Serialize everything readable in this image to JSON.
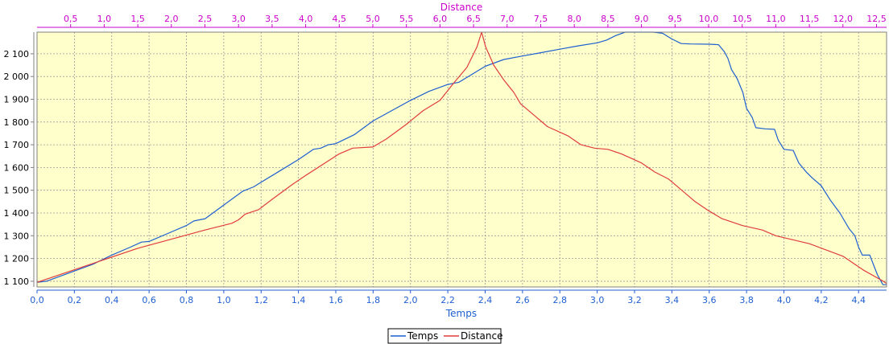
{
  "chart_data": {
    "type": "line",
    "top_axis": {
      "label": "Distance",
      "range": [
        0,
        12.65
      ],
      "ticks": [
        0.5,
        1.0,
        1.5,
        2.0,
        2.5,
        3.0,
        3.5,
        4.0,
        4.5,
        5.0,
        5.5,
        6.0,
        6.5,
        7.0,
        7.5,
        8.0,
        8.5,
        9.0,
        9.5,
        10.0,
        10.5,
        11.0,
        11.5,
        12.0,
        12.5
      ],
      "tick_labels": [
        "0,5",
        "1,0",
        "1,5",
        "2,0",
        "2,5",
        "3,0",
        "3,5",
        "4,0",
        "4,5",
        "5,0",
        "5,5",
        "6,0",
        "6,5",
        "7,0",
        "7,5",
        "8,0",
        "8,5",
        "9,0",
        "9,5",
        "10,0",
        "10,5",
        "11,0",
        "11,5",
        "12,0",
        "12,5"
      ],
      "color": "#cc00cc"
    },
    "bottom_axis": {
      "label": "Temps",
      "range": [
        0,
        4.55
      ],
      "ticks": [
        0.0,
        0.2,
        0.4,
        0.6,
        0.8,
        1.0,
        1.2,
        1.4,
        1.6,
        1.8,
        2.0,
        2.2,
        2.4,
        2.6,
        2.8,
        3.0,
        3.2,
        3.4,
        3.6,
        3.8,
        4.0,
        4.2,
        4.4
      ],
      "tick_labels": [
        "0,0",
        "0,2",
        "0,4",
        "0,6",
        "0,8",
        "1,0",
        "1,2",
        "1,4",
        "1,6",
        "1,8",
        "2,0",
        "2,2",
        "2,4",
        "2,6",
        "2,8",
        "3,0",
        "3,2",
        "3,4",
        "3,6",
        "3,8",
        "4,0",
        "4,2",
        "4,4"
      ],
      "color": "#1f5fd0"
    },
    "y_axis": {
      "label": "",
      "range": [
        1075,
        2195
      ],
      "ticks": [
        1100,
        1200,
        1300,
        1400,
        1500,
        1600,
        1700,
        1800,
        1900,
        2000,
        2100
      ],
      "tick_labels": [
        "1 100",
        "1 200",
        "1 300",
        "1 400",
        "1 500",
        "1 600",
        "1 700",
        "1 800",
        "1 900",
        "2 000",
        "2 100"
      ]
    },
    "grid": true,
    "legend_position": "bottom-center",
    "colors": {
      "plot_bg": "#ffffcc",
      "grid": "#999999",
      "temps": "#1f5fd0",
      "distance": "#e03c3c"
    },
    "series": [
      {
        "name": "Temps",
        "color": "#1f5fd0",
        "axis": "bottom",
        "points": [
          [
            0.0,
            1095
          ],
          [
            0.05,
            1100
          ],
          [
            0.1,
            1115
          ],
          [
            0.2,
            1145
          ],
          [
            0.3,
            1175
          ],
          [
            0.4,
            1215
          ],
          [
            0.5,
            1250
          ],
          [
            0.56,
            1272
          ],
          [
            0.6,
            1275
          ],
          [
            0.7,
            1310
          ],
          [
            0.8,
            1345
          ],
          [
            0.84,
            1365
          ],
          [
            0.9,
            1375
          ],
          [
            1.0,
            1435
          ],
          [
            1.1,
            1495
          ],
          [
            1.16,
            1515
          ],
          [
            1.2,
            1535
          ],
          [
            1.3,
            1585
          ],
          [
            1.4,
            1635
          ],
          [
            1.48,
            1680
          ],
          [
            1.52,
            1685
          ],
          [
            1.56,
            1700
          ],
          [
            1.6,
            1705
          ],
          [
            1.7,
            1745
          ],
          [
            1.8,
            1805
          ],
          [
            1.9,
            1850
          ],
          [
            2.0,
            1895
          ],
          [
            2.1,
            1935
          ],
          [
            2.2,
            1965
          ],
          [
            2.26,
            1975
          ],
          [
            2.3,
            1995
          ],
          [
            2.4,
            2045
          ],
          [
            2.5,
            2075
          ],
          [
            2.6,
            2090
          ],
          [
            2.7,
            2105
          ],
          [
            2.8,
            2120
          ],
          [
            2.9,
            2135
          ],
          [
            3.0,
            2148
          ],
          [
            3.05,
            2160
          ],
          [
            3.1,
            2180
          ],
          [
            3.15,
            2195
          ],
          [
            3.3,
            2195
          ],
          [
            3.35,
            2190
          ],
          [
            3.4,
            2165
          ],
          [
            3.45,
            2145
          ],
          [
            3.5,
            2143
          ],
          [
            3.6,
            2142
          ],
          [
            3.65,
            2140
          ],
          [
            3.68,
            2110
          ],
          [
            3.7,
            2080
          ],
          [
            3.72,
            2030
          ],
          [
            3.75,
            1990
          ],
          [
            3.78,
            1930
          ],
          [
            3.8,
            1860
          ],
          [
            3.83,
            1820
          ],
          [
            3.85,
            1775
          ],
          [
            3.9,
            1770
          ],
          [
            3.95,
            1768
          ],
          [
            3.97,
            1720
          ],
          [
            4.0,
            1680
          ],
          [
            4.05,
            1675
          ],
          [
            4.08,
            1620
          ],
          [
            4.12,
            1580
          ],
          [
            4.15,
            1555
          ],
          [
            4.2,
            1520
          ],
          [
            4.25,
            1455
          ],
          [
            4.3,
            1400
          ],
          [
            4.35,
            1330
          ],
          [
            4.38,
            1300
          ],
          [
            4.4,
            1250
          ],
          [
            4.42,
            1215
          ],
          [
            4.46,
            1215
          ],
          [
            4.5,
            1130
          ],
          [
            4.53,
            1085
          ],
          [
            4.55,
            1085
          ]
        ]
      },
      {
        "name": "Distance",
        "color": "#e03c3c",
        "axis": "top",
        "points": [
          [
            0.0,
            1095
          ],
          [
            0.5,
            1145
          ],
          [
            1.0,
            1195
          ],
          [
            1.5,
            1245
          ],
          [
            2.0,
            1285
          ],
          [
            2.5,
            1325
          ],
          [
            2.9,
            1355
          ],
          [
            3.0,
            1370
          ],
          [
            3.1,
            1395
          ],
          [
            3.3,
            1415
          ],
          [
            3.5,
            1460
          ],
          [
            3.8,
            1525
          ],
          [
            4.0,
            1565
          ],
          [
            4.5,
            1660
          ],
          [
            4.7,
            1685
          ],
          [
            5.0,
            1690
          ],
          [
            5.2,
            1725
          ],
          [
            5.5,
            1790
          ],
          [
            5.75,
            1850
          ],
          [
            6.0,
            1895
          ],
          [
            6.2,
            1970
          ],
          [
            6.4,
            2040
          ],
          [
            6.55,
            2130
          ],
          [
            6.62,
            2195
          ],
          [
            6.68,
            2130
          ],
          [
            6.8,
            2050
          ],
          [
            6.95,
            1985
          ],
          [
            7.1,
            1930
          ],
          [
            7.2,
            1880
          ],
          [
            7.4,
            1830
          ],
          [
            7.6,
            1780
          ],
          [
            7.9,
            1740
          ],
          [
            8.1,
            1700
          ],
          [
            8.3,
            1685
          ],
          [
            8.5,
            1680
          ],
          [
            8.7,
            1660
          ],
          [
            9.0,
            1620
          ],
          [
            9.2,
            1580
          ],
          [
            9.4,
            1550
          ],
          [
            9.6,
            1500
          ],
          [
            9.8,
            1450
          ],
          [
            10.0,
            1410
          ],
          [
            10.2,
            1375
          ],
          [
            10.5,
            1345
          ],
          [
            10.8,
            1325
          ],
          [
            11.0,
            1300
          ],
          [
            11.5,
            1265
          ],
          [
            12.0,
            1210
          ],
          [
            12.3,
            1150
          ],
          [
            12.6,
            1100
          ],
          [
            12.65,
            1090
          ]
        ]
      }
    ]
  }
}
